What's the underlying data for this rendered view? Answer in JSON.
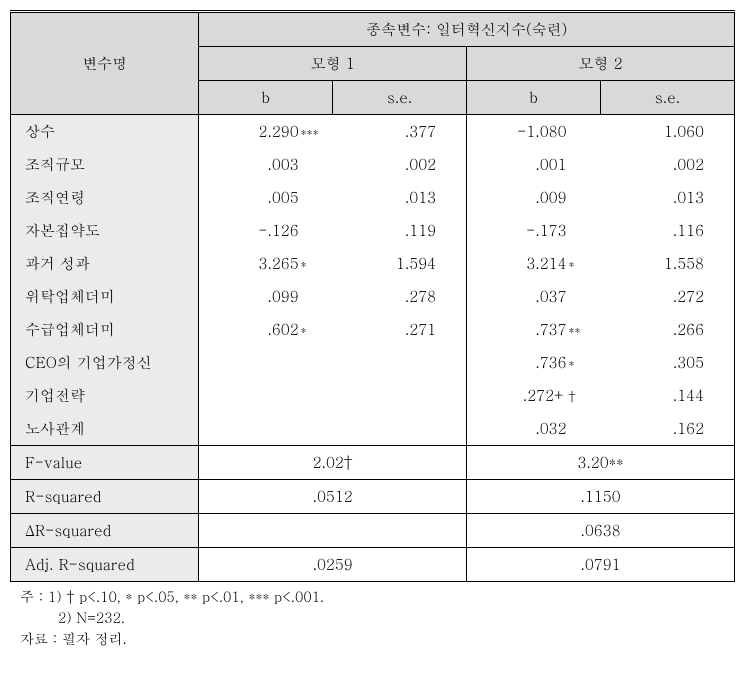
{
  "table": {
    "dep_var_label": "종속변수: 일터혁신지수(숙련)",
    "var_header": "변수명",
    "model1_label": "모형 1",
    "model2_label": "모형 2",
    "sub_b": "b",
    "sub_se": "s.e.",
    "rows": [
      {
        "label": "상수",
        "b1": "2.290",
        "s1": "***",
        "se1": ".377",
        "b2": "-1.080",
        "s2": "",
        "se2": "1.060"
      },
      {
        "label": "조직규모",
        "b1": ".003",
        "s1": "",
        "se1": ".002",
        "b2": ".001",
        "s2": "",
        "se2": ".002"
      },
      {
        "label": "조직연령",
        "b1": ".005",
        "s1": "",
        "se1": ".013",
        "b2": ".009",
        "s2": "",
        "se2": ".013"
      },
      {
        "label": "자본집약도",
        "b1": "-.126",
        "s1": "",
        "se1": ".119",
        "b2": "-.173",
        "s2": "",
        "se2": ".116"
      },
      {
        "label": "과거 성과",
        "b1": "3.265",
        "s1": "*",
        "se1": "1.594",
        "b2": "3.214",
        "s2": "*",
        "se2": "1.558"
      },
      {
        "label": "위탁업체더미",
        "b1": ".099",
        "s1": "",
        "se1": ".278",
        "b2": ".037",
        "s2": "",
        "se2": ".272"
      },
      {
        "label": "수급업체더미",
        "b1": ".602",
        "s1": "*",
        "se1": ".271",
        "b2": ".737",
        "s2": "**",
        "se2": ".266"
      },
      {
        "label": "CEO의 기업가정신",
        "b1": "",
        "s1": "",
        "se1": "",
        "b2": ".736",
        "s2": "*",
        "se2": ".305"
      },
      {
        "label": "기업전략",
        "b1": "",
        "s1": "",
        "se1": "",
        "b2": ".272+",
        "s2": "†",
        "se2": ".144"
      },
      {
        "label": "노사관계",
        "b1": "",
        "s1": "",
        "se1": "",
        "b2": ".032",
        "s2": "",
        "se2": ".162"
      }
    ],
    "summary": [
      {
        "label": "F-value",
        "m1": "2.02†",
        "m2": "3.20**"
      },
      {
        "label": "R-squared",
        "m1": ".0512",
        "m2": ".1150"
      },
      {
        "label": "ΔR-squared",
        "m1": "",
        "m2": ".0638"
      },
      {
        "label": "Adj. R-squared",
        "m1": ".0259",
        "m2": ".0791"
      }
    ]
  },
  "notes": {
    "line1": "주 : 1) † p<.10, * p<.05, ** p<.01, *** p<.001.",
    "line2": "2) N=232.",
    "line3": "자료 : 필자 정리."
  },
  "style": {
    "header_bg": "#d9d9d9",
    "rowlabel_bg": "#eceaea",
    "border_color": "#000000",
    "font_size_pt": 11
  }
}
